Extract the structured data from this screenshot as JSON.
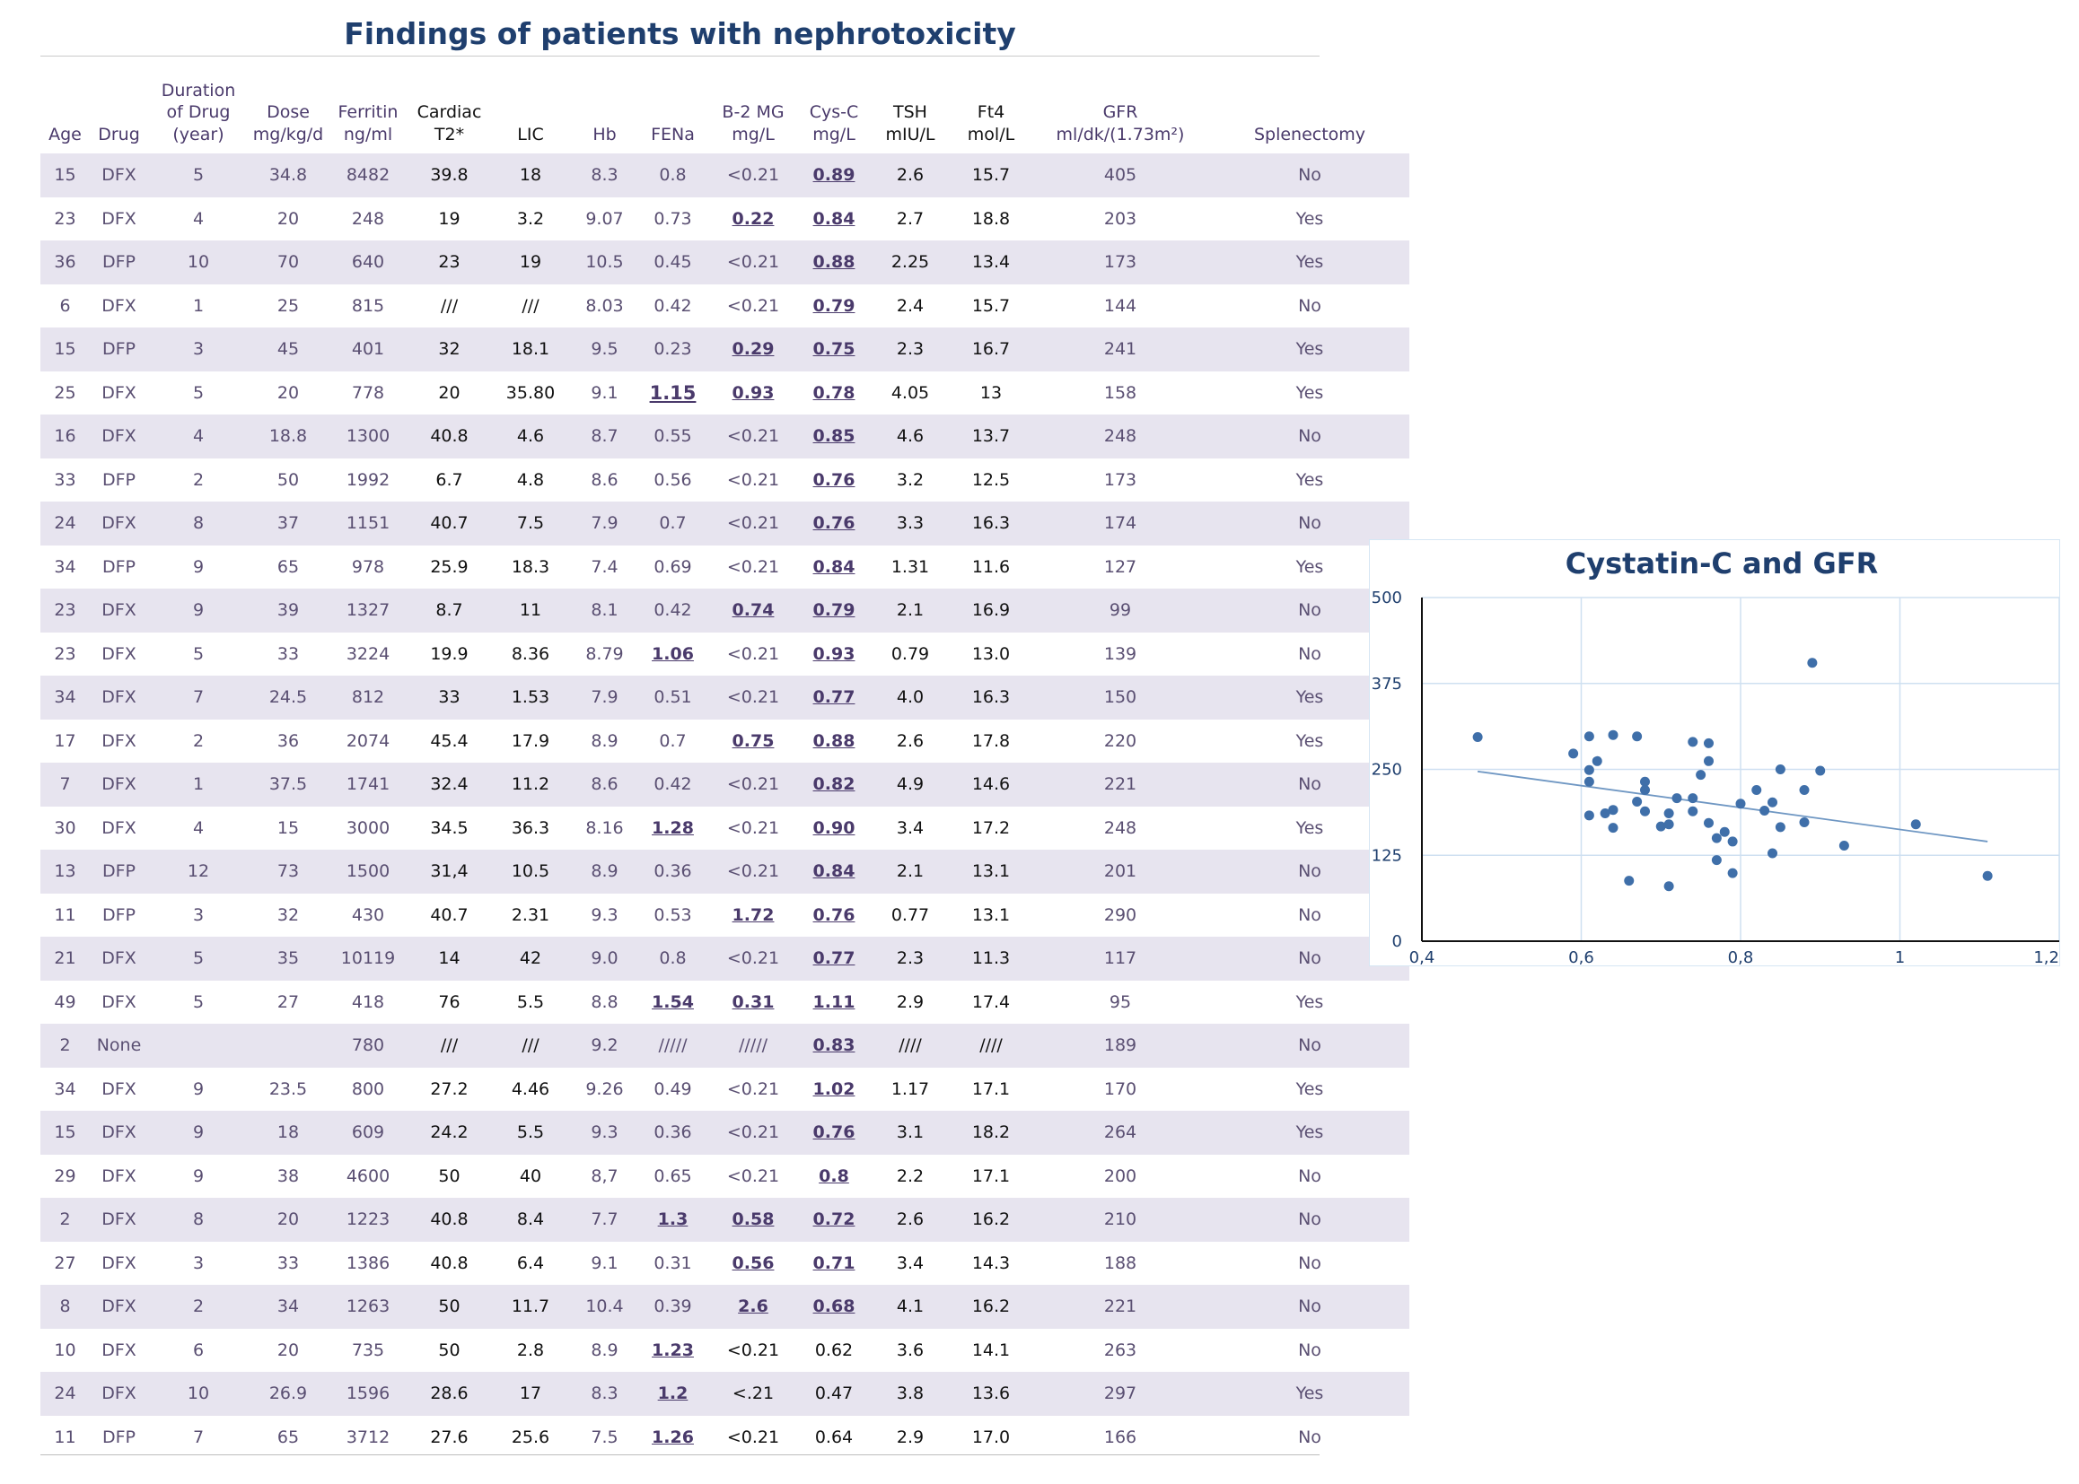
{
  "table": {
    "title": "Findings of patients with nephrotoxicity",
    "headers": [
      "Age",
      "Drug",
      "Duration\nof Drug\n(year)",
      "Dose\nmg/kg/d",
      "Ferritin\nng/ml",
      "Cardiac\nT2*",
      "LIC",
      "Hb",
      "FENa",
      "B-2 MG\nmg/L",
      "Cys-C\nmg/L",
      "TSH\nmIU/L",
      "Ft4\nmol/L",
      "GFR\nml/dk/(1.73m²)",
      "Splenectomy"
    ],
    "rows": [
      [
        "15",
        "DFX",
        "5",
        "34.8",
        "8482",
        "39.8",
        "18",
        "8.3",
        "0.8",
        "<0.21",
        "0.89",
        "2.6",
        "15.7",
        "405",
        "No"
      ],
      [
        "23",
        "DFX",
        "4",
        "20",
        "248",
        "19",
        "3.2",
        "9.07",
        "0.73",
        "0.22",
        "0.84",
        "2.7",
        "18.8",
        "203",
        "Yes"
      ],
      [
        "36",
        "DFP",
        "10",
        "70",
        "640",
        "23",
        "19",
        "10.5",
        "0.45",
        "<0.21",
        "0.88",
        "2.25",
        "13.4",
        "173",
        "Yes"
      ],
      [
        "6",
        "DFX",
        "1",
        "25",
        "815",
        "///",
        "///",
        "8.03",
        "0.42",
        "<0.21",
        "0.79",
        "2.4",
        "15.7",
        "144",
        "No"
      ],
      [
        "15",
        "DFP",
        "3",
        "45",
        "401",
        "32",
        "18.1",
        "9.5",
        "0.23",
        "0.29",
        "0.75",
        "2.3",
        "16.7",
        "241",
        "Yes"
      ],
      [
        "25",
        "DFX",
        "5",
        "20",
        "778",
        "20",
        "35.80",
        "9.1",
        "1.15",
        "0.93",
        "0.78",
        "4.05",
        "13",
        "158",
        "Yes"
      ],
      [
        "16",
        "DFX",
        "4",
        "18.8",
        "1300",
        "40.8",
        "4.6",
        "8.7",
        "0.55",
        "<0.21",
        "0.85",
        "4.6",
        "13.7",
        "248",
        "No"
      ],
      [
        "33",
        "DFP",
        "2",
        "50",
        "1992",
        "6.7",
        "4.8",
        "8.6",
        "0.56",
        "<0.21",
        "0.76",
        "3.2",
        "12.5",
        "173",
        "Yes"
      ],
      [
        "24",
        "DFX",
        "8",
        "37",
        "1151",
        "40.7",
        "7.5",
        "7.9",
        "0.7",
        "<0.21",
        "0.76",
        "3.3",
        "16.3",
        "174",
        "No"
      ],
      [
        "34",
        "DFP",
        "9",
        "65",
        "978",
        "25.9",
        "18.3",
        "7.4",
        "0.69",
        "<0.21",
        "0.84",
        "1.31",
        "11.6",
        "127",
        "Yes"
      ],
      [
        "23",
        "DFX",
        "9",
        "39",
        "1327",
        "8.7",
        "11",
        "8.1",
        "0.42",
        "0.74",
        "0.79",
        "2.1",
        "16.9",
        "99",
        "No"
      ],
      [
        "23",
        "DFX",
        "5",
        "33",
        "3224",
        "19.9",
        "8.36",
        "8.79",
        "1.06",
        "<0.21",
        "0.93",
        "0.79",
        "13.0",
        "139",
        "No"
      ],
      [
        "34",
        "DFX",
        "7",
        "24.5",
        "812",
        "33",
        "1.53",
        "7.9",
        "0.51",
        "<0.21",
        "0.77",
        "4.0",
        "16.3",
        "150",
        "Yes"
      ],
      [
        "17",
        "DFX",
        "2",
        "36",
        "2074",
        "45.4",
        "17.9",
        "8.9",
        "0.7",
        "0.75",
        "0.88",
        "2.6",
        "17.8",
        "220",
        "Yes"
      ],
      [
        "7",
        "DFX",
        "1",
        "37.5",
        "1741",
        "32.4",
        "11.2",
        "8.6",
        "0.42",
        "<0.21",
        "0.82",
        "4.9",
        "14.6",
        "221",
        "No"
      ],
      [
        "30",
        "DFX",
        "4",
        "15",
        "3000",
        "34.5",
        "36.3",
        "8.16",
        "1.28",
        "<0.21",
        "0.90",
        "3.4",
        "17.2",
        "248",
        "Yes"
      ],
      [
        "13",
        "DFP",
        "12",
        "73",
        "1500",
        "31,4",
        "10.5",
        "8.9",
        "0.36",
        "<0.21",
        "0.84",
        "2.1",
        "13.1",
        "201",
        "No"
      ],
      [
        "11",
        "DFP",
        "3",
        "32",
        "430",
        "40.7",
        "2.31",
        "9.3",
        "0.53",
        "1.72",
        "0.76",
        "0.77",
        "13.1",
        "290",
        "No"
      ],
      [
        "21",
        "DFX",
        "5",
        "35",
        "10119",
        "14",
        "42",
        "9.0",
        "0.8",
        "<0.21",
        "0.77",
        "2.3",
        "11.3",
        "117",
        "No"
      ],
      [
        "49",
        "DFX",
        "5",
        "27",
        "418",
        "76",
        "5.5",
        "8.8",
        "1.54",
        "0.31",
        "1.11",
        "2.9",
        "17.4",
        "95",
        "Yes"
      ],
      [
        "2",
        "None",
        "",
        "",
        "780",
        "///",
        "///",
        "9.2",
        "/////",
        "/////",
        "0.83",
        "////",
        "////",
        "189",
        "No"
      ],
      [
        "34",
        "DFX",
        "9",
        "23.5",
        "800",
        "27.2",
        "4.46",
        "9.26",
        "0.49",
        "<0.21",
        "1.02",
        "1.17",
        "17.1",
        "170",
        "Yes"
      ],
      [
        "15",
        "DFX",
        "9",
        "18",
        "609",
        "24.2",
        "5.5",
        "9.3",
        "0.36",
        "<0.21",
        "0.76",
        "3.1",
        "18.2",
        "264",
        "Yes"
      ],
      [
        "29",
        "DFX",
        "9",
        "38",
        "4600",
        "50",
        "40",
        "8,7",
        "0.65",
        "<0.21",
        "0.8",
        "2.2",
        "17.1",
        "200",
        "No"
      ],
      [
        "2",
        "DFX",
        "8",
        "20",
        "1223",
        "40.8",
        "8.4",
        "7.7",
        "1.3",
        "0.58",
        "0.72",
        "2.6",
        "16.2",
        "210",
        "No"
      ],
      [
        "27",
        "DFX",
        "3",
        "33",
        "1386",
        "40.8",
        "6.4",
        "9.1",
        "0.31",
        "0.56",
        "0.71",
        "3.4",
        "14.3",
        "188",
        "No"
      ],
      [
        "8",
        "DFX",
        "2",
        "34",
        "1263",
        "50",
        "11.7",
        "10.4",
        "0.39",
        "2.6",
        "0.68",
        "4.1",
        "16.2",
        "221",
        "No"
      ],
      [
        "10",
        "DFX",
        "6",
        "20",
        "735",
        "50",
        "2.8",
        "8.9",
        "1.23",
        "<0.21",
        "0.62",
        "3.6",
        "14.1",
        "263",
        "No"
      ],
      [
        "24",
        "DFX",
        "10",
        "26.9",
        "1596",
        "28.6",
        "17",
        "8.3",
        "1.2",
        "<.21",
        "0.47",
        "3.8",
        "13.6",
        "297",
        "Yes"
      ],
      [
        "11",
        "DFP",
        "7",
        "65",
        "3712",
        "27.6",
        "25.6",
        "7.5",
        "1.26",
        "<0.21",
        "0.64",
        "2.9",
        "17.0",
        "166",
        "No"
      ]
    ]
  },
  "chart_data": {
    "type": "scatter",
    "title": "Cystatin-C and GFR",
    "xlabel": "",
    "ylabel": "",
    "xlim": [
      0.4,
      1.2
    ],
    "ylim": [
      0,
      500
    ],
    "x_ticks": [
      0.4,
      0.6,
      0.8,
      1.0,
      1.2
    ],
    "x_tick_labels": [
      "0,4",
      "0,6",
      "0,8",
      "1",
      "1,2"
    ],
    "y_ticks": [
      0,
      125,
      250,
      375,
      500
    ],
    "y_tick_labels": [
      "0",
      "125",
      "250",
      "375",
      "500"
    ],
    "grid": true,
    "point_color": "#3f6fa9",
    "trendline": {
      "type": "linear",
      "x": [
        0.47,
        1.11
      ],
      "y": [
        247,
        145
      ]
    },
    "points": [
      [
        0.47,
        297
      ],
      [
        0.59,
        273
      ],
      [
        0.61,
        298
      ],
      [
        0.61,
        249
      ],
      [
        0.61,
        232
      ],
      [
        0.61,
        183
      ],
      [
        0.62,
        262
      ],
      [
        0.63,
        186
      ],
      [
        0.64,
        300
      ],
      [
        0.64,
        191
      ],
      [
        0.64,
        165
      ],
      [
        0.66,
        88
      ],
      [
        0.67,
        298
      ],
      [
        0.67,
        203
      ],
      [
        0.68,
        232
      ],
      [
        0.68,
        220
      ],
      [
        0.68,
        189
      ],
      [
        0.7,
        167
      ],
      [
        0.71,
        186
      ],
      [
        0.71,
        80
      ],
      [
        0.71,
        170
      ],
      [
        0.72,
        208
      ],
      [
        0.74,
        290
      ],
      [
        0.74,
        208
      ],
      [
        0.74,
        189
      ],
      [
        0.75,
        242
      ],
      [
        0.76,
        288
      ],
      [
        0.76,
        262
      ],
      [
        0.76,
        172
      ],
      [
        0.77,
        150
      ],
      [
        0.77,
        118
      ],
      [
        0.78,
        159
      ],
      [
        0.79,
        145
      ],
      [
        0.79,
        99
      ],
      [
        0.8,
        200
      ],
      [
        0.82,
        220
      ],
      [
        0.83,
        190
      ],
      [
        0.84,
        202
      ],
      [
        0.84,
        128
      ],
      [
        0.85,
        250
      ],
      [
        0.85,
        166
      ],
      [
        0.88,
        220
      ],
      [
        0.88,
        173
      ],
      [
        0.89,
        405
      ],
      [
        0.9,
        248
      ],
      [
        0.93,
        139
      ],
      [
        1.02,
        170
      ],
      [
        1.11,
        95
      ]
    ]
  }
}
